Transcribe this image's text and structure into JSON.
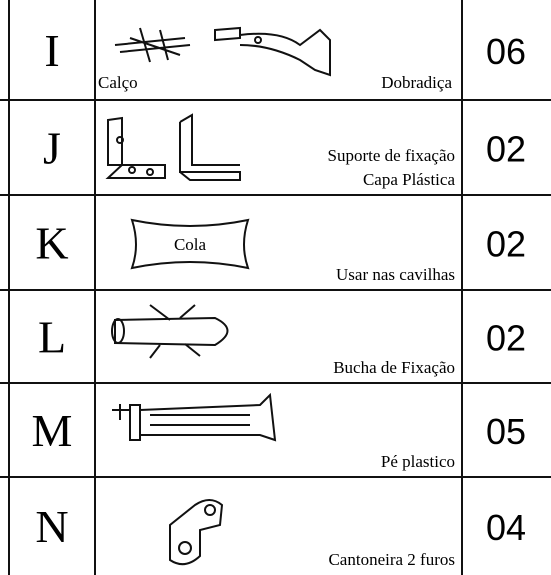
{
  "table": {
    "rows": [
      {
        "letter": "I",
        "labels": [
          "Calço",
          "Dobradiça"
        ],
        "quantity": "06"
      },
      {
        "letter": "J",
        "labels": [
          "Suporte de fixação",
          "Capa Plástica"
        ],
        "quantity": "02"
      },
      {
        "letter": "K",
        "icon_text": "Cola",
        "labels": [
          "Usar nas cavilhas"
        ],
        "quantity": "02"
      },
      {
        "letter": "L",
        "labels": [
          "Bucha de Fixação"
        ],
        "quantity": "02"
      },
      {
        "letter": "M",
        "labels": [
          "Pé plastico"
        ],
        "quantity": "05"
      },
      {
        "letter": "N",
        "labels": [
          "Cantoneira 2 furos"
        ],
        "quantity": "04"
      }
    ]
  }
}
